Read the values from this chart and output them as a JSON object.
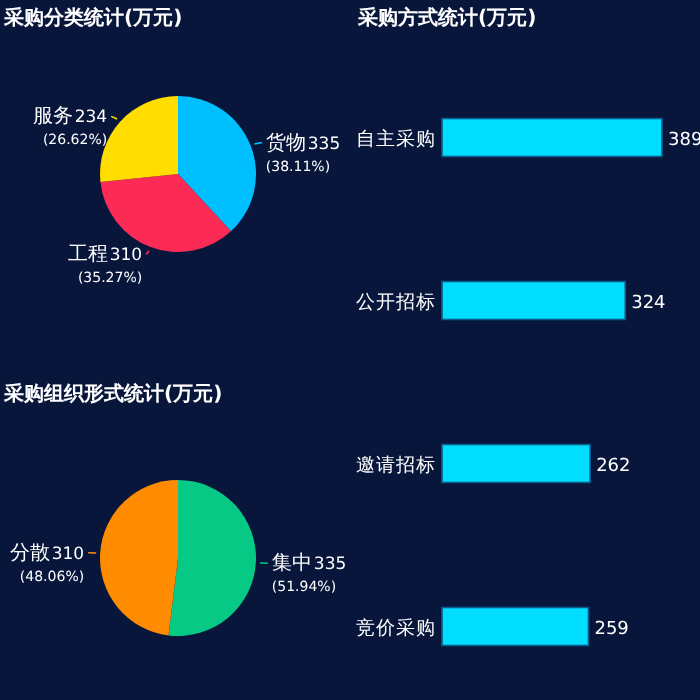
{
  "chart_data": [
    {
      "type": "pie",
      "title": "采购分类统计(万元)",
      "categories": [
        "货物",
        "工程",
        "服务"
      ],
      "values": [
        335,
        310,
        234
      ],
      "colors": [
        "#00bfff",
        "#fb2b55",
        "#ffdd00"
      ],
      "data_labels": true,
      "annotations": [
        "(38.11%)",
        "(35.27%)",
        "(26.62%)"
      ]
    },
    {
      "type": "bar",
      "orientation": "horizontal",
      "title": "采购方式统计(万元)",
      "categories": [
        "自主采购",
        "公开招标",
        "邀请招标",
        "竞价采购"
      ],
      "values": [
        389,
        324,
        262,
        259
      ],
      "color": "#00ddff",
      "data_labels": true
    },
    {
      "type": "pie",
      "title": "采购组织形式统计(万元)",
      "categories": [
        "集中",
        "分散"
      ],
      "values": [
        335,
        310
      ],
      "colors": [
        "#06c985",
        "#ff8c00"
      ],
      "data_labels": true,
      "annotations": [
        "(51.94%)",
        "(48.06%)"
      ]
    }
  ]
}
